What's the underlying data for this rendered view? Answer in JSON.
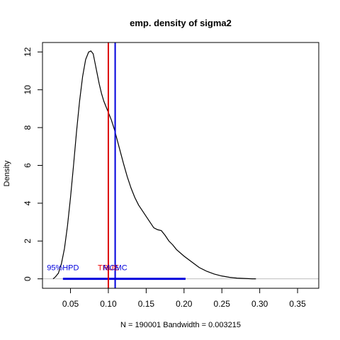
{
  "chart_data": {
    "type": "line",
    "title": "emp. density of sigma2",
    "xlabel": "N = 190001   Bandwidth = 0.003215",
    "ylabel": "Density",
    "xlim": [
      0.013,
      0.378
    ],
    "ylim": [
      -0.5,
      12.5
    ],
    "x_ticks": [
      0.05,
      0.1,
      0.15,
      0.2,
      0.25,
      0.3,
      0.35
    ],
    "x_tick_labels": [
      "0.05",
      "0.10",
      "0.15",
      "0.20",
      "0.25",
      "0.30",
      "0.35"
    ],
    "y_ticks": [
      0,
      2,
      4,
      6,
      8,
      10,
      12
    ],
    "y_tick_labels": [
      "0",
      "2",
      "4",
      "6",
      "8",
      "10",
      "12"
    ],
    "baseline_color": "#bebebe",
    "series": [
      {
        "color": "#000000",
        "x": [
          0.027,
          0.03,
          0.034,
          0.038,
          0.042,
          0.046,
          0.05,
          0.054,
          0.058,
          0.062,
          0.066,
          0.07,
          0.074,
          0.077,
          0.08,
          0.082,
          0.085,
          0.088,
          0.091,
          0.094,
          0.097,
          0.1,
          0.104,
          0.108,
          0.112,
          0.116,
          0.12,
          0.125,
          0.13,
          0.135,
          0.14,
          0.145,
          0.15,
          0.155,
          0.16,
          0.165,
          0.17,
          0.175,
          0.18,
          0.185,
          0.19,
          0.2,
          0.21,
          0.22,
          0.23,
          0.24,
          0.25,
          0.26,
          0.27,
          0.28,
          0.29,
          0.295
        ],
        "y": [
          0.0,
          0.1,
          0.3,
          0.8,
          1.6,
          2.8,
          4.3,
          6.0,
          7.8,
          9.4,
          10.7,
          11.6,
          12.0,
          12.05,
          11.9,
          11.5,
          10.9,
          10.3,
          9.8,
          9.4,
          9.1,
          8.8,
          8.4,
          7.9,
          7.3,
          6.7,
          6.1,
          5.4,
          4.8,
          4.3,
          3.9,
          3.6,
          3.3,
          3.0,
          2.7,
          2.6,
          2.55,
          2.3,
          2.0,
          1.8,
          1.55,
          1.2,
          0.9,
          0.6,
          0.4,
          0.25,
          0.15,
          0.08,
          0.04,
          0.02,
          0.0,
          0.0
        ]
      }
    ],
    "vlines": [
      {
        "x": 0.1,
        "color": "#dd0000"
      },
      {
        "x": 0.109,
        "color": "#0000dd"
      }
    ],
    "hpd_interval": {
      "x0": 0.04,
      "x1": 0.202,
      "y": 0,
      "color": "#0000dd"
    },
    "annotations": [
      {
        "text": "95%HPD",
        "x": 0.04,
        "y": 0.45,
        "color": "#0000dd"
      },
      {
        "text": "TRUE",
        "x": 0.1,
        "y": 0.45,
        "color": "#ee0000"
      },
      {
        "text": "MCMC",
        "x": 0.109,
        "y": 0.45,
        "color": "#0000dd"
      }
    ]
  }
}
